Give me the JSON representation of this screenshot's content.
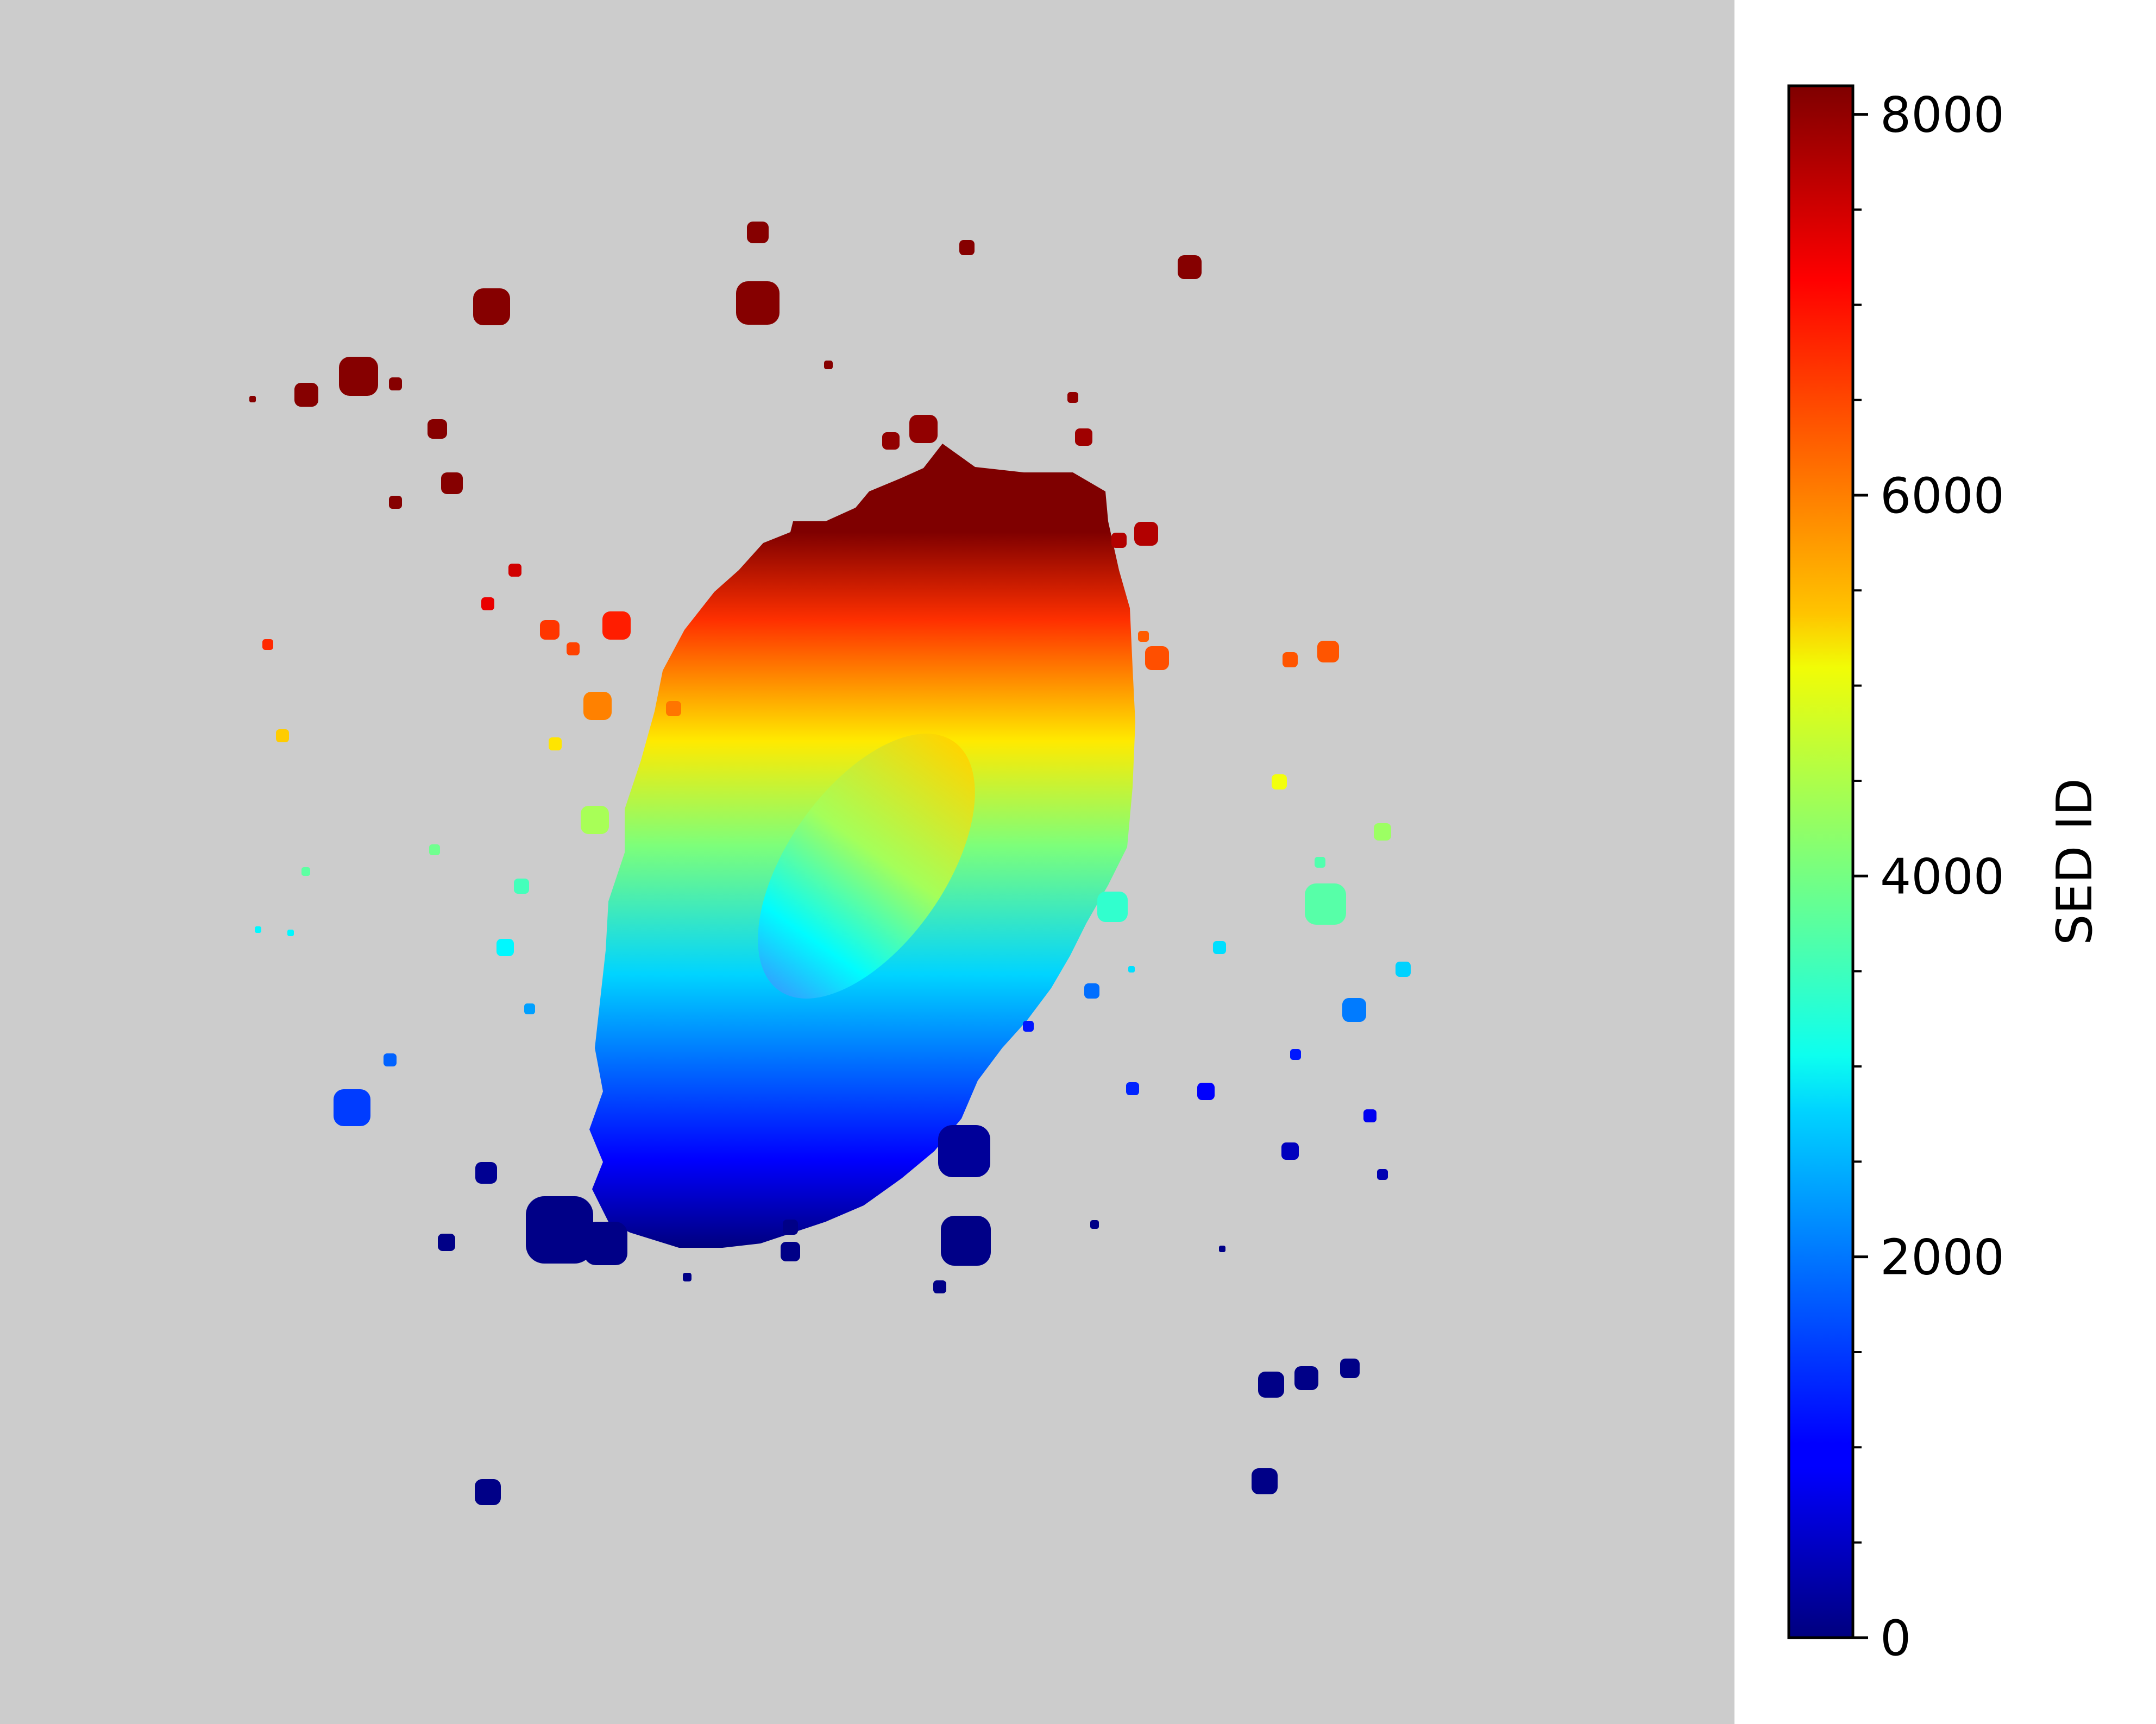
{
  "chart_data": {
    "type": "heatmap",
    "title": "",
    "colormap": "jet",
    "background_color": "#cccccc",
    "colorbar": {
      "label": "SED ID",
      "vmin": 0,
      "vmax": 8150,
      "major_ticks": [
        0,
        2000,
        4000,
        6000,
        8000
      ],
      "tick_labels": [
        "0",
        "2000",
        "4000",
        "6000",
        "8000"
      ],
      "minor_tick_step": 500
    },
    "description_values": {
      "main_galaxy_sed_id_range": [
        0,
        8150
      ],
      "central_bulge_sed_id_range": [
        2300,
        5700
      ]
    }
  }
}
